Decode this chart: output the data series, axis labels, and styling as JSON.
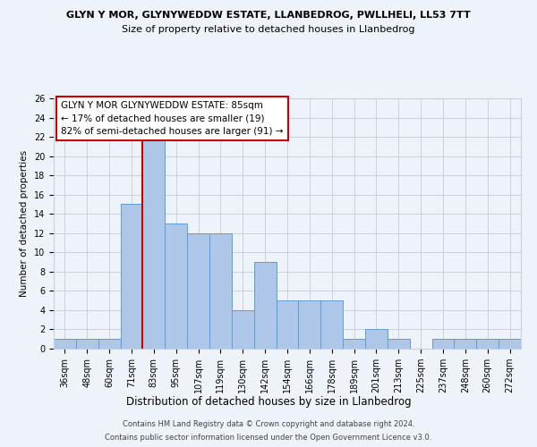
{
  "title1": "GLYN Y MOR, GLYNYWEDDW ESTATE, LLANBEDROG, PWLLHELI, LL53 7TT",
  "title2": "Size of property relative to detached houses in Llanbedrog",
  "xlabel": "Distribution of detached houses by size in Llanbedrog",
  "ylabel": "Number of detached properties",
  "footer1": "Contains HM Land Registry data © Crown copyright and database right 2024.",
  "footer2": "Contains public sector information licensed under the Open Government Licence v3.0.",
  "categories": [
    "36sqm",
    "48sqm",
    "60sqm",
    "71sqm",
    "83sqm",
    "95sqm",
    "107sqm",
    "119sqm",
    "130sqm",
    "142sqm",
    "154sqm",
    "166sqm",
    "178sqm",
    "189sqm",
    "201sqm",
    "213sqm",
    "225sqm",
    "237sqm",
    "248sqm",
    "260sqm",
    "272sqm"
  ],
  "values": [
    1,
    1,
    1,
    15,
    22,
    13,
    12,
    12,
    4,
    9,
    5,
    5,
    5,
    1,
    2,
    1,
    0,
    1,
    1,
    1,
    1
  ],
  "highlight_index": 4,
  "bar_color": "#aec6e8",
  "bar_edge_color": "#5a9fd4",
  "highlight_line_color": "#cc0000",
  "ylim": [
    0,
    26
  ],
  "yticks": [
    0,
    2,
    4,
    6,
    8,
    10,
    12,
    14,
    16,
    18,
    20,
    22,
    24,
    26
  ],
  "annotation_title": "GLYN Y MOR GLYNYWEDDW ESTATE: 85sqm",
  "annotation_line1": "← 17% of detached houses are smaller (19)",
  "annotation_line2": "82% of semi-detached houses are larger (91) →",
  "bg_color": "#eef2f9",
  "grid_color": "#c8d0de",
  "title1_fontsize": 8.0,
  "title2_fontsize": 8.0,
  "xlabel_fontsize": 8.5,
  "ylabel_fontsize": 7.5,
  "tick_fontsize": 7.0,
  "annotation_fontsize": 7.5,
  "footer_fontsize": 6.0
}
